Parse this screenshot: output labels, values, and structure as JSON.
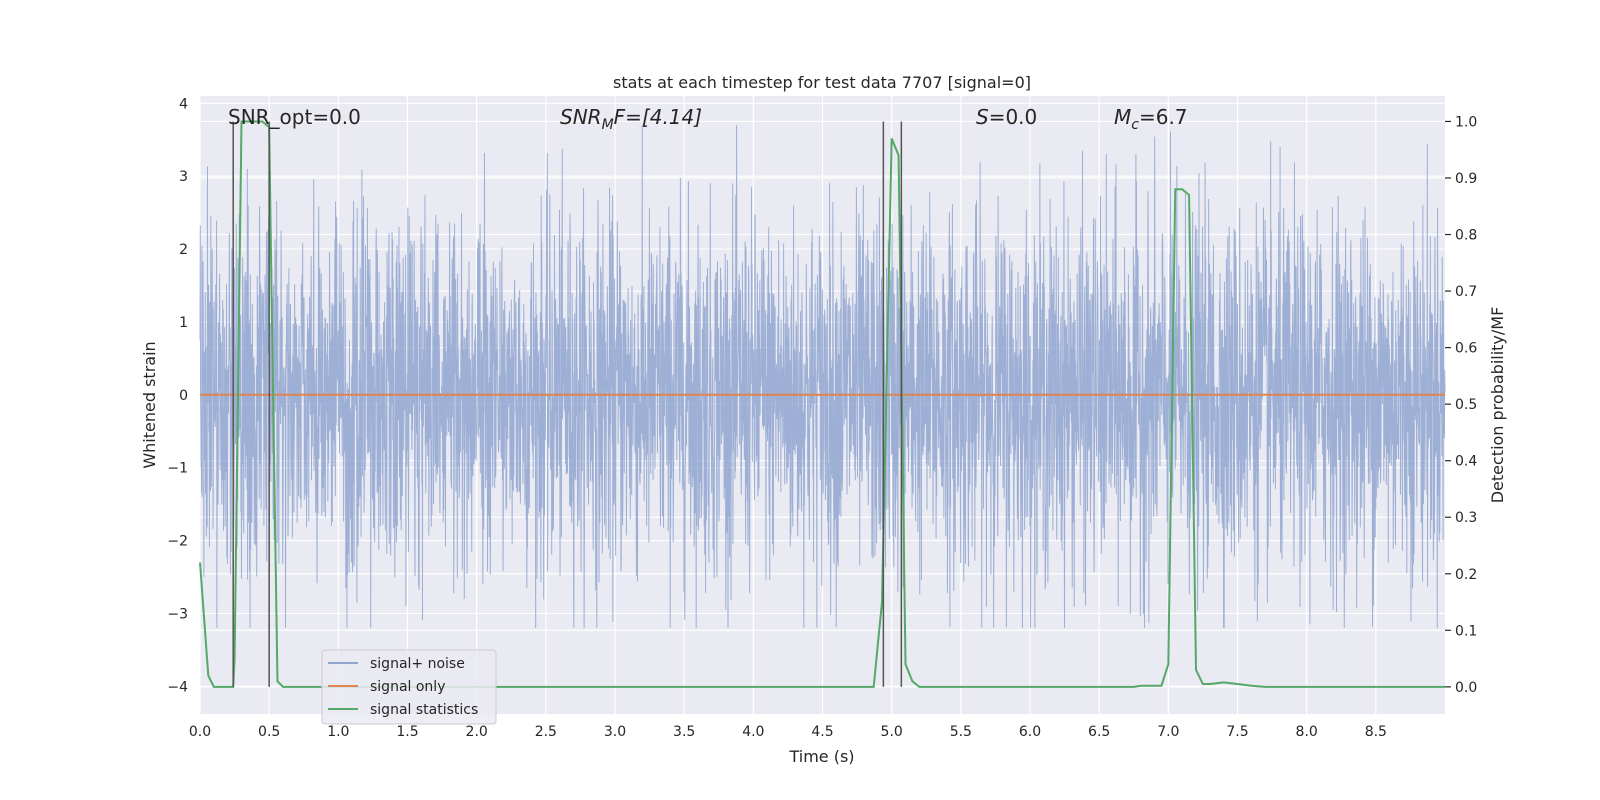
{
  "chart_data": {
    "type": "line",
    "title": "stats at each timestep for test data 7707 [signal=0]",
    "xlabel": "Time (s)",
    "ylabel_left": "Whitened strain",
    "ylabel_right": "Detection probability/MF",
    "xlim": [
      0.0,
      9.0
    ],
    "ylim_left": [
      -4.38,
      4.1
    ],
    "ylim_right": [
      -0.048,
      1.045
    ],
    "xticks": [
      "0.0",
      "0.5",
      "1.0",
      "1.5",
      "2.0",
      "2.5",
      "3.0",
      "3.5",
      "4.0",
      "4.5",
      "5.0",
      "5.5",
      "6.0",
      "6.5",
      "7.0",
      "7.5",
      "8.0",
      "8.5"
    ],
    "xtick_values": [
      0.0,
      0.5,
      1.0,
      1.5,
      2.0,
      2.5,
      3.0,
      3.5,
      4.0,
      4.5,
      5.0,
      5.5,
      6.0,
      6.5,
      7.0,
      7.5,
      8.0,
      8.5
    ],
    "yticks_left": [
      "−4",
      "−3",
      "−2",
      "−1",
      "0",
      "1",
      "2",
      "3",
      "4"
    ],
    "ytick_values_left": [
      -4,
      -3,
      -2,
      -1,
      0,
      1,
      2,
      3,
      4
    ],
    "yticks_right": [
      "0.0",
      "0.1",
      "0.2",
      "0.3",
      "0.4",
      "0.5",
      "0.6",
      "0.7",
      "0.8",
      "0.9",
      "1.0"
    ],
    "ytick_values_right": [
      0.0,
      0.1,
      0.2,
      0.3,
      0.4,
      0.5,
      0.6,
      0.7,
      0.8,
      0.9,
      1.0
    ],
    "annotations": {
      "snr_opt": "SNR_opt=0.0",
      "snr_mf_base": "SNR",
      "snr_mf_sub": "M",
      "snr_mf_rest": "F=[4.14]",
      "s_label": "S",
      "s_rest": "=0.0",
      "mc_base": "M",
      "mc_sub": "c",
      "mc_rest": "=6.7"
    },
    "vertical_lines_s": [
      0.24,
      0.5,
      4.94,
      5.07
    ],
    "series": [
      {
        "name": "signal+ noise",
        "color": "#8fa5cf",
        "kind": "noise",
        "envelope_typical": [
          -1.4,
          1.4
        ],
        "envelope_peak": [
          -3.2,
          3.7
        ]
      },
      {
        "name": "signal only",
        "color": "#dd8452",
        "kind": "line",
        "axis": "left",
        "x": [
          0.0,
          9.0
        ],
        "y": [
          0.0,
          0.0
        ]
      },
      {
        "name": "signal statistics",
        "color": "#55a868",
        "kind": "line",
        "axis": "right",
        "x": [
          0.0,
          0.03,
          0.06,
          0.1,
          0.2,
          0.24,
          0.25,
          0.3,
          0.35,
          0.4,
          0.45,
          0.5,
          0.52,
          0.56,
          0.6,
          0.65,
          0.8,
          1.0,
          2.0,
          3.0,
          4.0,
          4.5,
          4.8,
          4.87,
          4.93,
          4.96,
          5.0,
          5.05,
          5.1,
          5.15,
          5.2,
          5.5,
          6.0,
          6.5,
          6.75,
          6.8,
          6.95,
          7.0,
          7.05,
          7.1,
          7.15,
          7.2,
          7.25,
          7.3,
          7.4,
          7.5,
          7.6,
          7.7,
          8.0,
          8.5,
          9.0
        ],
        "y": [
          0.22,
          0.12,
          0.02,
          0.0,
          0.0,
          0.0,
          0.05,
          1.0,
          1.0,
          1.0,
          1.0,
          0.99,
          0.65,
          0.01,
          0.0,
          0.0,
          0.0,
          0.0,
          0.0,
          0.0,
          0.0,
          0.0,
          0.0,
          0.0,
          0.15,
          0.5,
          0.97,
          0.94,
          0.04,
          0.01,
          0.0,
          0.0,
          0.0,
          0.0,
          0.0,
          0.002,
          0.002,
          0.04,
          0.88,
          0.88,
          0.87,
          0.03,
          0.005,
          0.005,
          0.008,
          0.005,
          0.002,
          0.0,
          0.0,
          0.0,
          0.0
        ]
      }
    ],
    "legend": [
      "signal+ noise",
      "signal only",
      "signal statistics"
    ],
    "legend_position": "lower-left",
    "grid": true
  }
}
